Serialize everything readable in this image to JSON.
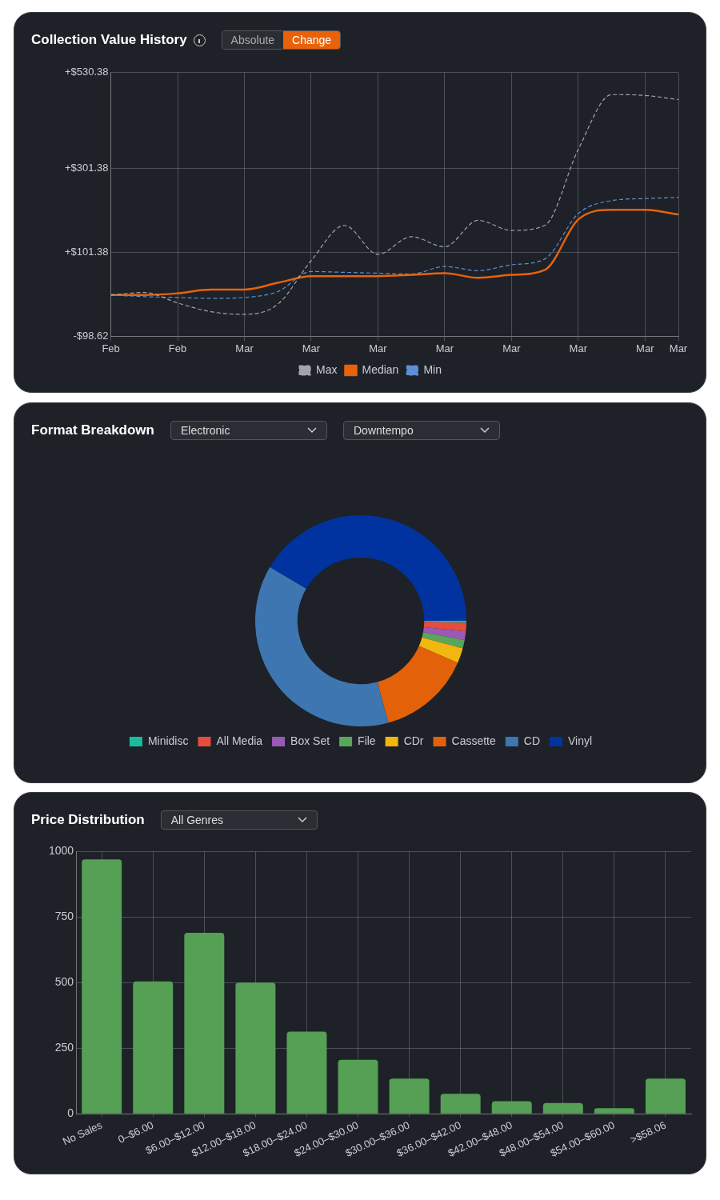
{
  "chart_data": [
    {
      "type": "line",
      "title": "Collection Value History",
      "annotations": [
        "Absolute",
        "Change"
      ],
      "categories": [
        "Feb",
        null,
        "Feb",
        null,
        "Mar",
        null,
        "Mar",
        null,
        "Mar",
        null,
        "Mar",
        null,
        "Mar",
        null,
        "Mar",
        null,
        "Mar",
        "Mar"
      ],
      "ylim": [
        -98.62,
        530.38
      ],
      "yticks": [
        {
          "value": -98.62,
          "label": "-$98.62"
        },
        {
          "value": 101.38,
          "label": "+$101.38"
        },
        {
          "value": 301.38,
          "label": "+$301.38"
        },
        {
          "value": 530.38,
          "label": "+$530.38"
        }
      ],
      "grid": true,
      "legend": "bottom",
      "marker": "none",
      "series": [
        {
          "name": "Max",
          "color": "#a0a4ab",
          "line_style": "dashed",
          "values": [
            0,
            6,
            -19,
            -40,
            -46,
            -22,
            82,
            166,
            97,
            139,
            115,
            178,
            154,
            166,
            347,
            478,
            476,
            466
          ]
        },
        {
          "name": "Median",
          "color": "#e8620a",
          "line_style": "solid",
          "values": [
            0,
            0,
            4,
            13,
            13,
            29,
            45,
            45,
            45,
            48,
            52,
            41,
            48,
            60,
            180,
            203,
            203,
            192
          ]
        },
        {
          "name": "Min",
          "color": "#5b8fd6",
          "line_style": "dashed",
          "values": [
            0,
            -4,
            -6,
            -8,
            -6,
            8,
            56,
            54,
            52,
            50,
            68,
            58,
            72,
            86,
            194,
            225,
            230,
            233
          ]
        }
      ]
    },
    {
      "type": "donut",
      "title": "Format Breakdown",
      "annotations": [
        "Electronic",
        "Downtempo"
      ],
      "legend": "bottom",
      "categories": [
        "Minidisc",
        "All Media",
        "Box Set",
        "File",
        "CDr",
        "Cassette",
        "CD",
        "Vinyl"
      ],
      "values": [
        0.3,
        1.3,
        1.3,
        1.3,
        2.3,
        14.3,
        37.7,
        41.5
      ],
      "colors": [
        "#1abc9c",
        "#e74c3c",
        "#9b59b6",
        "#59a65a",
        "#f1b70e",
        "#e36209",
        "#3d76b0",
        "#0033a0"
      ]
    },
    {
      "type": "bar",
      "title": "Price Distribution",
      "annotations": [
        "All Genres"
      ],
      "categories": [
        "No Sales",
        "0–$6.00",
        "$6.00–$12.00",
        "$12.00–$18.00",
        "$18.00–$24.00",
        "$24.00–$30.00",
        "$30.00–$36.00",
        "$36.00–$42.00",
        "$42.00–$48.00",
        "$48.00–$54.00",
        "$54.00–$60.00",
        ">$58.06"
      ],
      "values": [
        970,
        505,
        690,
        500,
        313,
        206,
        134,
        76,
        48,
        41,
        21,
        134
      ],
      "color": "#55a055",
      "ylim": [
        0,
        1000
      ],
      "yticks": [
        0,
        250,
        500,
        750,
        1000
      ],
      "grid": true
    }
  ]
}
